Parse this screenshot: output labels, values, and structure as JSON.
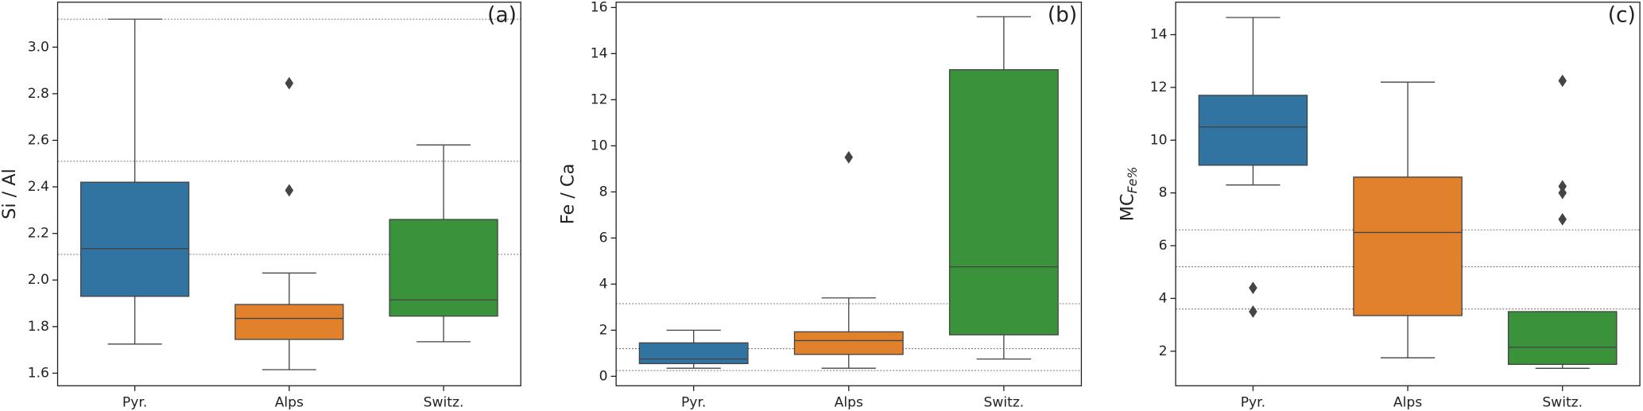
{
  "chart_data": [
    {
      "type": "box",
      "panel_label": "(a)",
      "ylabel": "Si / Al",
      "categories": [
        "Pyr.",
        "Alps",
        "Switz."
      ],
      "colors": [
        "#3274a1",
        "#e1812c",
        "#3a923a"
      ],
      "boxes": [
        {
          "whisker_low": 1.725,
          "q1": 1.93,
          "median": 2.135,
          "q3": 2.42,
          "whisker_high": 3.12,
          "outliers": []
        },
        {
          "whisker_low": 1.615,
          "q1": 1.745,
          "median": 1.835,
          "q3": 1.895,
          "whisker_high": 2.03,
          "outliers": [
            2.385,
            2.845
          ]
        },
        {
          "whisker_low": 1.735,
          "q1": 1.845,
          "median": 1.915,
          "q3": 2.26,
          "whisker_high": 2.58,
          "outliers": []
        }
      ],
      "reference_lines": [
        3.12,
        2.51,
        2.11
      ],
      "ylim": [
        1.546,
        3.193
      ],
      "yticks": [
        1.6,
        1.8,
        {
          "value": 2,
          "label": "2.0"
        },
        2.2,
        2.4,
        2.6,
        2.8,
        {
          "value": 3,
          "label": "3.0"
        }
      ]
    },
    {
      "type": "box",
      "panel_label": "(b)",
      "ylabel": "Fe / Ca",
      "categories": [
        "Pyr.",
        "Alps",
        "Switz."
      ],
      "colors": [
        "#3274a1",
        "#e1812c",
        "#3a923a"
      ],
      "boxes": [
        {
          "whisker_low": 0.35,
          "q1": 0.55,
          "median": 0.75,
          "q3": 1.45,
          "whisker_high": 2.0,
          "outliers": []
        },
        {
          "whisker_low": 0.35,
          "q1": 0.95,
          "median": 1.55,
          "q3": 1.93,
          "whisker_high": 3.4,
          "outliers": [
            9.5
          ]
        },
        {
          "whisker_low": 0.75,
          "q1": 1.8,
          "median": 4.75,
          "q3": 13.3,
          "whisker_high": 15.6,
          "outliers": []
        }
      ],
      "reference_lines": [
        3.15,
        1.2,
        0.25
      ],
      "ylim": [
        -0.41,
        16.23
      ],
      "yticks": [
        0,
        2,
        4,
        6,
        8,
        10,
        12,
        14,
        16
      ]
    },
    {
      "type": "box",
      "panel_label": "(c)",
      "ylabel": "MC",
      "ylabel_subscript": "Fe%",
      "categories": [
        "Pyr.",
        "Alps",
        "Switz."
      ],
      "colors": [
        "#3274a1",
        "#e1812c",
        "#3a923a"
      ],
      "boxes": [
        {
          "whisker_low": 8.3,
          "q1": 9.05,
          "median": 10.5,
          "q3": 11.7,
          "whisker_high": 14.65,
          "outliers": [
            4.4,
            3.5
          ]
        },
        {
          "whisker_low": 1.75,
          "q1": 3.35,
          "median": 6.5,
          "q3": 8.6,
          "whisker_high": 12.2,
          "outliers": []
        },
        {
          "whisker_low": 1.35,
          "q1": 1.5,
          "median": 2.15,
          "q3": 3.5,
          "whisker_high": 3.5,
          "outliers": [
            12.25,
            8.25,
            8.0,
            7.0
          ]
        }
      ],
      "reference_lines": [
        6.6,
        5.2,
        3.6
      ],
      "ylim": [
        0.69,
        15.23
      ],
      "yticks": [
        2,
        4,
        6,
        8,
        10,
        12,
        14
      ]
    }
  ]
}
